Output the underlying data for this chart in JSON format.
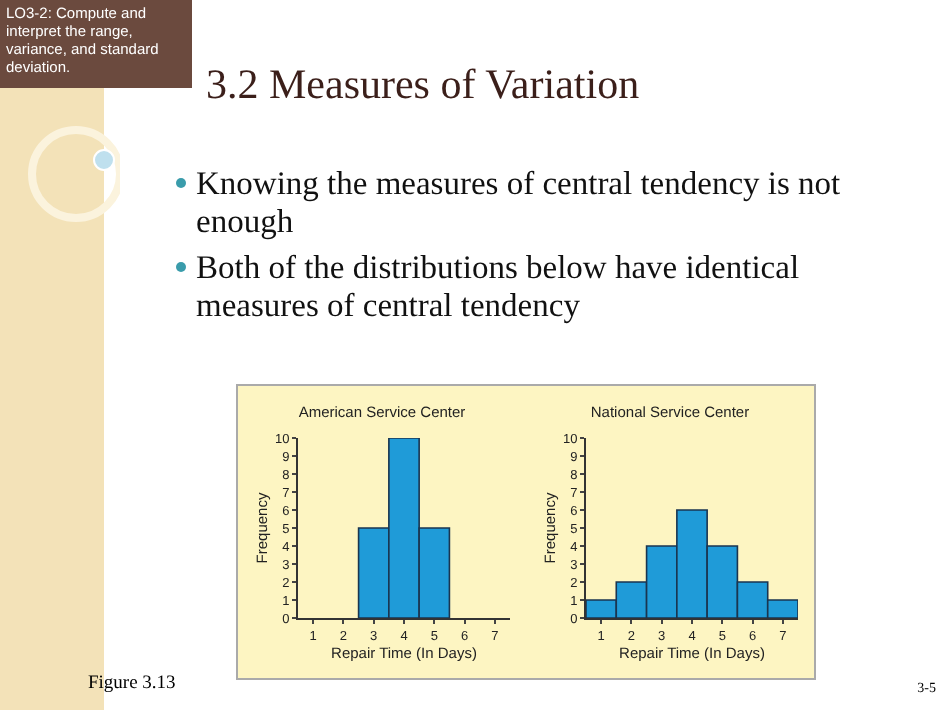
{
  "chart_data": [
    {
      "type": "other",
      "title": "3.2 Measures of Variation",
      "annotations": [
        "LO3-2: Compute and interpret the range, variance, and standard deviation.",
        "Knowing the measures of central tendency is not enough",
        "Both of the distributions below have identical measures of central tendency",
        "Figure 3.13",
        "3-5"
      ]
    },
    {
      "type": "histogram",
      "title": "American Service Center",
      "xlabel": "Repair Time (In Days)",
      "ylabel": "Frequency",
      "bins": [
        0.5,
        1.5,
        2.5,
        3.5,
        4.5,
        5.5,
        6.5,
        7.5
      ],
      "values": [
        0,
        0,
        5,
        10,
        5,
        0,
        0
      ],
      "color": "#1f9bd8",
      "xlim": [
        0.5,
        7.5
      ],
      "xticks": [
        1,
        2,
        3,
        4,
        5,
        6,
        7
      ],
      "ylim": [
        0,
        10
      ],
      "yticks": [
        0,
        1,
        2,
        3,
        4,
        5,
        6,
        7,
        8,
        9,
        10
      ],
      "grid": false,
      "legend": false
    },
    {
      "type": "histogram",
      "title": "National Service Center",
      "xlabel": "Repair Time (In Days)",
      "ylabel": "Frequency",
      "bins": [
        0.5,
        1.5,
        2.5,
        3.5,
        4.5,
        5.5,
        6.5,
        7.5
      ],
      "values": [
        1,
        2,
        4,
        6,
        4,
        2,
        1
      ],
      "color": "#1f9bd8",
      "xlim": [
        0.5,
        7.5
      ],
      "xticks": [
        1,
        2,
        3,
        4,
        5,
        6,
        7
      ],
      "ylim": [
        0,
        10
      ],
      "yticks": [
        0,
        1,
        2,
        3,
        4,
        5,
        6,
        7,
        8,
        9,
        10
      ],
      "grid": false,
      "legend": false
    }
  ]
}
